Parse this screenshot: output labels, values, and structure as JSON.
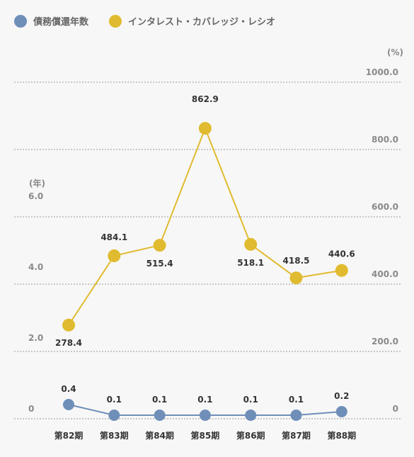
{
  "chart_data": {
    "type": "line",
    "categories": [
      "第82期",
      "第83期",
      "第84期",
      "第85期",
      "第86期",
      "第87期",
      "第88期"
    ],
    "series": [
      {
        "name": "債務償還年数",
        "axis": "left",
        "color": "#6f8fb8",
        "values": [
          0.4,
          0.1,
          0.1,
          0.1,
          0.1,
          0.1,
          0.2
        ],
        "labels": [
          "0.4",
          "0.1",
          "0.1",
          "0.1",
          "0.1",
          "0.1",
          "0.2"
        ]
      },
      {
        "name": "インタレスト・カバレッジ・レシオ",
        "axis": "right",
        "color": "#e0bb2f",
        "values": [
          278.4,
          484.1,
          515.4,
          862.9,
          518.1,
          418.5,
          440.6
        ],
        "labels": [
          "278.4",
          "484.1",
          "515.4",
          "862.9",
          "518.1",
          "418.5",
          "440.6"
        ]
      }
    ],
    "left_axis": {
      "unit": "(年)",
      "ticks": [
        0,
        2.0,
        4.0,
        6.0
      ],
      "tick_labels": [
        "0",
        "2.0",
        "4.0",
        "6.0"
      ]
    },
    "right_axis": {
      "unit": "(%)",
      "ylim": [
        0,
        1000
      ],
      "ticks": [
        0,
        200,
        400,
        600,
        800,
        1000
      ],
      "tick_labels": [
        "0",
        "200.0",
        "400.0",
        "600.0",
        "800.0",
        "1000.0"
      ]
    },
    "legend_position": "top-left",
    "grid": true
  }
}
